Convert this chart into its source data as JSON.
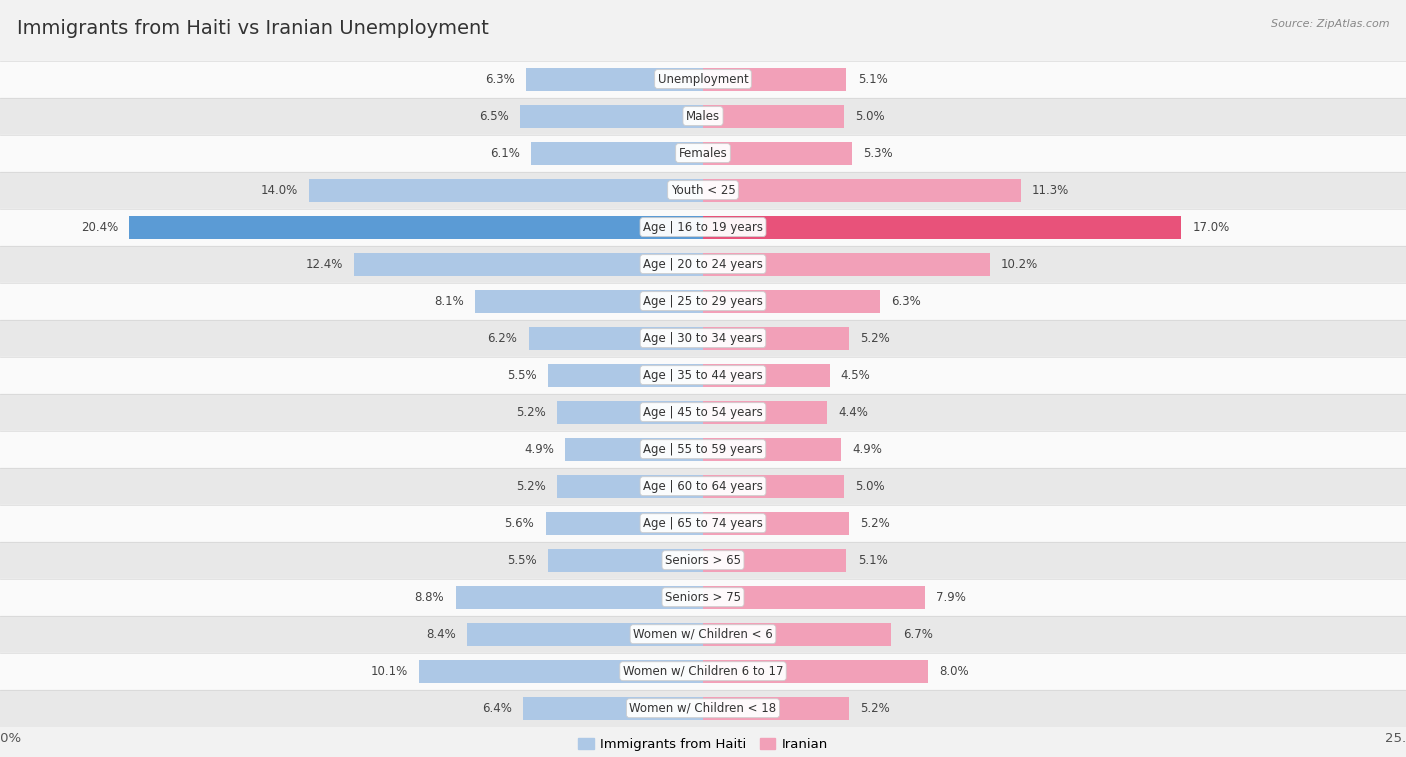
{
  "title": "Immigrants from Haiti vs Iranian Unemployment",
  "source": "Source: ZipAtlas.com",
  "categories": [
    "Unemployment",
    "Males",
    "Females",
    "Youth < 25",
    "Age | 16 to 19 years",
    "Age | 20 to 24 years",
    "Age | 25 to 29 years",
    "Age | 30 to 34 years",
    "Age | 35 to 44 years",
    "Age | 45 to 54 years",
    "Age | 55 to 59 years",
    "Age | 60 to 64 years",
    "Age | 65 to 74 years",
    "Seniors > 65",
    "Seniors > 75",
    "Women w/ Children < 6",
    "Women w/ Children 6 to 17",
    "Women w/ Children < 18"
  ],
  "haiti_values": [
    6.3,
    6.5,
    6.1,
    14.0,
    20.4,
    12.4,
    8.1,
    6.2,
    5.5,
    5.2,
    4.9,
    5.2,
    5.6,
    5.5,
    8.8,
    8.4,
    10.1,
    6.4
  ],
  "iranian_values": [
    5.1,
    5.0,
    5.3,
    11.3,
    17.0,
    10.2,
    6.3,
    5.2,
    4.5,
    4.4,
    4.9,
    5.0,
    5.2,
    5.1,
    7.9,
    6.7,
    8.0,
    5.2
  ],
  "haiti_color": "#adc8e6",
  "iranian_color": "#f2a0b8",
  "haiti_highlight_color": "#5b9bd5",
  "iranian_highlight_color": "#e8527a",
  "axis_limit": 25.0,
  "bg_color": "#f2f2f2",
  "row_bg_light": "#fafafa",
  "row_bg_dark": "#e8e8e8",
  "label_fontsize": 8.5,
  "title_fontsize": 14,
  "value_fontsize": 8.5,
  "legend_haiti": "Immigrants from Haiti",
  "legend_iranian": "Iranian",
  "bar_height": 0.62
}
